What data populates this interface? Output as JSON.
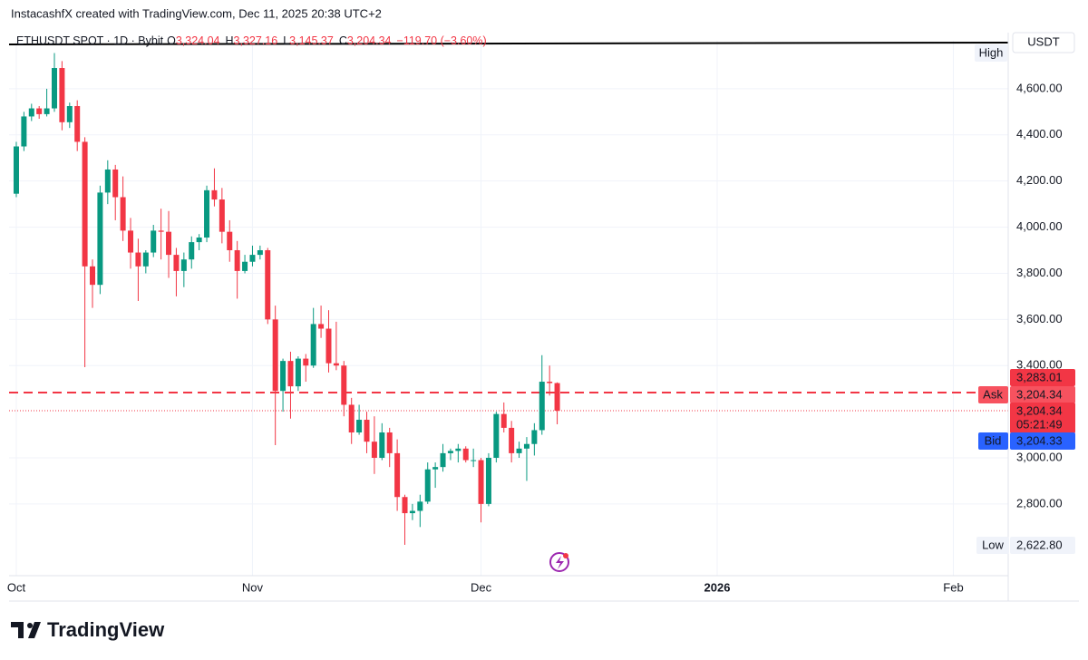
{
  "header": "InstacashfX created with TradingView.com, Dec 11, 2025 20:38 UTC+2",
  "brand": "TradingView",
  "chart_data": {
    "type": "candlestick",
    "title": "ETHUSDT SPOT · 1D · Bybit",
    "legend_items": [
      {
        "key": "O",
        "value": {
          "value": 3324.04,
          "label": "3,324.04"
        }
      },
      {
        "key": "H",
        "value": {
          "value": 3327.16,
          "label": "3,327.16"
        }
      },
      {
        "key": "L",
        "value": {
          "value": 3145.37,
          "label": "3,145.37"
        }
      },
      {
        "key": "C",
        "value": {
          "value": 3204.34,
          "label": "3,204.34"
        }
      }
    ],
    "change": "−119.70 (−3.60%)",
    "currency": "USDT",
    "up_color": "#089981",
    "down_color": "#f23645",
    "open": [
      4145,
      4350,
      4480,
      4515,
      4490,
      4515,
      4690,
      4455,
      4525,
      4370,
      3830,
      3750,
      4150,
      4250,
      4130,
      3985,
      3890,
      3830,
      3890,
      3985,
      3980,
      3880,
      3810,
      3860,
      3935,
      3955,
      4160,
      4120,
      3980,
      3900,
      3810,
      3850,
      3880,
      3900,
      3600,
      3290,
      3420,
      3310,
      3430,
      3400,
      3580,
      3560,
      3410,
      3400,
      3230,
      3110,
      3165,
      3070,
      3000,
      3110,
      3020,
      2830,
      2760,
      2770,
      2810,
      2950,
      2960,
      3020,
      3030,
      3040,
      2990,
      2990,
      2800,
      3000,
      3190,
      3130,
      3020,
      3040,
      3060,
      3120,
      3330,
      3324.04
    ],
    "high": [
      4370,
      4500,
      4535,
      4525,
      4600,
      4755,
      4720,
      4540,
      4550,
      4390,
      3860,
      4180,
      4290,
      4270,
      4220,
      4040,
      3950,
      3900,
      4010,
      4080,
      4070,
      3910,
      3890,
      3960,
      3970,
      4180,
      4255,
      4170,
      4030,
      3940,
      3880,
      3920,
      3920,
      3910,
      3660,
      3430,
      3460,
      3440,
      3450,
      3650,
      3660,
      3640,
      3590,
      3420,
      3260,
      3230,
      3200,
      3180,
      3150,
      3130,
      3080,
      2840,
      2800,
      2840,
      2980,
      2980,
      3060,
      3040,
      3060,
      3050,
      3040,
      3000,
      3020,
      3200,
      3240,
      3160,
      3070,
      3090,
      3150,
      3445,
      3400,
      3327.16
    ],
    "low": [
      4130,
      4330,
      4460,
      4470,
      4480,
      4500,
      4420,
      4430,
      4330,
      3393,
      3650,
      3710,
      4100,
      4030,
      3940,
      3820,
      3680,
      3800,
      3870,
      3860,
      3780,
      3700,
      3740,
      3820,
      3900,
      3935,
      4090,
      3930,
      3850,
      3690,
      3800,
      3830,
      3860,
      3580,
      3055,
      3200,
      3170,
      3290,
      3330,
      3390,
      3520,
      3370,
      3380,
      3180,
      3060,
      3100,
      3020,
      2930,
      2990,
      2960,
      2770,
      2622.8,
      2730,
      2700,
      2800,
      2870,
      2940,
      2990,
      2980,
      2980,
      2960,
      2720,
      2790,
      2980,
      3110,
      2980,
      3000,
      2900,
      3010,
      3100,
      3270,
      3145.37
    ],
    "close": [
      4350,
      4480,
      4515,
      4490,
      4515,
      4690,
      4455,
      4525,
      4370,
      3830,
      3750,
      4150,
      4250,
      4130,
      3985,
      3890,
      3830,
      3890,
      3985,
      3980,
      3880,
      3810,
      3860,
      3935,
      3955,
      4160,
      4120,
      3980,
      3900,
      3810,
      3850,
      3880,
      3900,
      3600,
      3290,
      3420,
      3310,
      3430,
      3400,
      3580,
      3560,
      3410,
      3400,
      3230,
      3110,
      3165,
      3070,
      3000,
      3110,
      3020,
      2830,
      2760,
      2770,
      2810,
      2950,
      2960,
      3020,
      3030,
      3040,
      2990,
      2990,
      2800,
      3000,
      3190,
      3130,
      3020,
      3040,
      3060,
      3120,
      3330,
      3324.04,
      3204.34
    ],
    "xlim": [
      -0.95,
      130.2
    ],
    "xticks": [
      {
        "value": 0,
        "label": "Oct"
      },
      {
        "value": 31,
        "label": "Nov"
      },
      {
        "value": 61,
        "label": "Dec"
      },
      {
        "value": 92,
        "label": "2026"
      },
      {
        "value": 123,
        "label": "Feb"
      }
    ],
    "ylim": [
      2489,
      4808
    ],
    "yticks": [
      {
        "value": 2800,
        "label": "2,800.00"
      },
      {
        "value": 3000,
        "label": "3,000.00"
      },
      {
        "value": 3400,
        "label": "3,400.00"
      },
      {
        "value": 3600,
        "label": "3,600.00"
      },
      {
        "value": 3800,
        "label": "3,800.00"
      },
      {
        "value": 4000,
        "label": "4,000.00"
      },
      {
        "value": 4200,
        "label": "4,200.00"
      },
      {
        "value": 4400,
        "label": "4,400.00"
      },
      {
        "value": 4600,
        "label": "4,600.00"
      }
    ],
    "grid": true,
    "high_tag": "High",
    "low_marker": {
      "tag": "Low",
      "value": 2622.8,
      "label": "2,622.80"
    },
    "price_lines": [
      {
        "value": 3283.01,
        "style": "dashed"
      },
      {
        "value": 3204.34,
        "style": "dotted"
      }
    ],
    "price_labels": [
      {
        "value": 3283.01,
        "label": "3,283.01"
      },
      {
        "tag": "Ask",
        "value": 3204.34,
        "label": "3,204.34"
      },
      {
        "value": 3204.34,
        "label": "3,204.34",
        "sub": "05:21:49"
      },
      {
        "tag": "Bid",
        "value": 3204.33,
        "label": "3,204.33"
      }
    ]
  }
}
